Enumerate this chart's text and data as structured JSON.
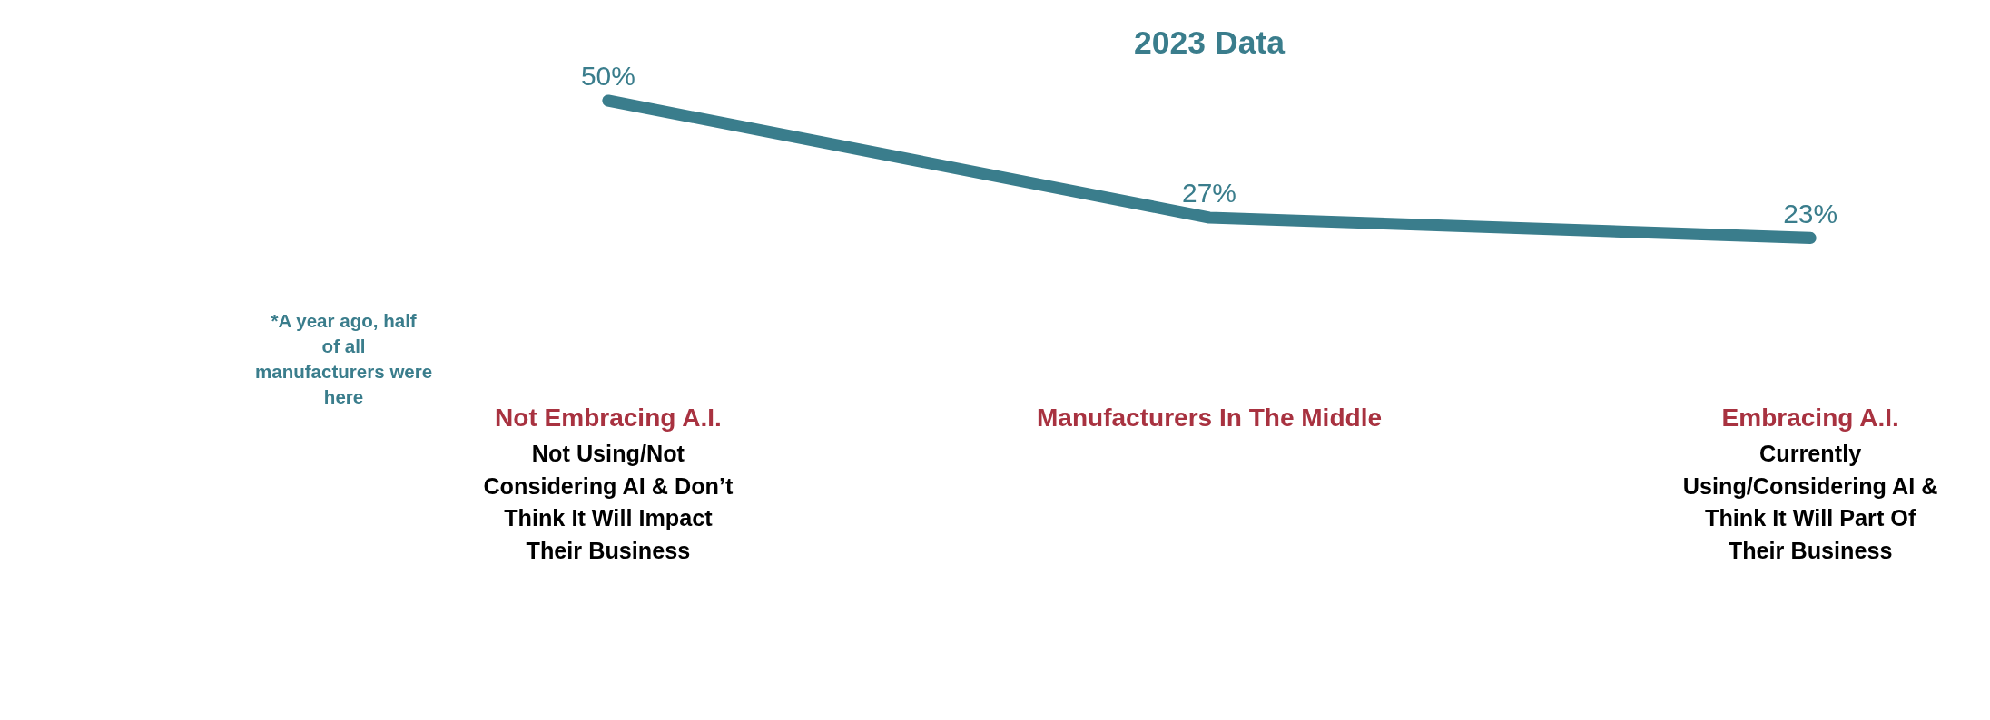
{
  "chart_data": {
    "type": "line",
    "title": "2023 Data",
    "categories": [
      "Not Embracing A.I.",
      "Manufacturers In The Middle",
      "Embracing A.I."
    ],
    "series": [
      {
        "color": "#3a7d8c",
        "values": [
          50,
          27,
          23
        ],
        "value_labels": [
          "50%",
          "27%",
          "23%"
        ]
      }
    ],
    "annotations": [
      "Not Using/Not Considering AI & Don’t Think It Will Impact Their Business",
      "Currently Using/Considering AI & Think It Will Part Of Their Business",
      "*A year ago, half of all manufacturers were here"
    ]
  }
}
